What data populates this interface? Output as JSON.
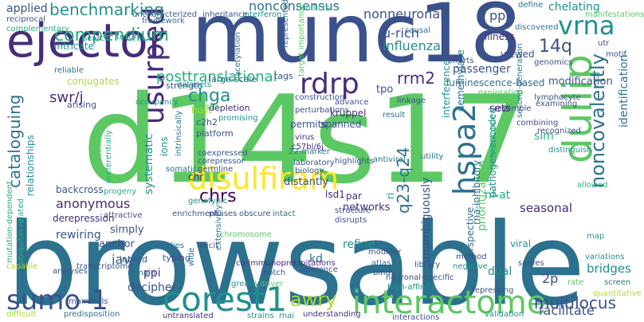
{
  "palette": [
    "#440154",
    "#472c7a",
    "#3b518b",
    "#2c718e",
    "#21908d",
    "#27ad81",
    "#5cc863",
    "#aadc32",
    "#fde725"
  ],
  "words": [
    {
      "text": "browsable",
      "c": 3
    },
    {
      "text": "d14s17",
      "c": 6
    },
    {
      "text": "munc18",
      "c": 2
    },
    {
      "text": "ejector",
      "c": 1
    },
    {
      "text": "interactome",
      "c": 6
    },
    {
      "text": "corest1",
      "c": 4
    },
    {
      "text": "sumo-1",
      "c": 2
    },
    {
      "text": "disulfiram",
      "c": 8
    },
    {
      "text": "dullip",
      "c": 6
    },
    {
      "text": "usurped",
      "c": 1
    },
    {
      "text": "vrna",
      "c": 4
    },
    {
      "text": "hspa2",
      "c": 3
    },
    {
      "text": "rdrp",
      "c": 1
    },
    {
      "text": "compendium",
      "c": 5
    },
    {
      "text": "benchmarking",
      "c": 4
    },
    {
      "text": "noncovalently",
      "c": 3
    },
    {
      "text": "cataloguing",
      "c": 3
    },
    {
      "text": "chga",
      "c": 4
    },
    {
      "text": "awry",
      "c": 7
    },
    {
      "text": "q23-q24",
      "c": 3
    },
    {
      "text": "chrs",
      "c": 0
    },
    {
      "text": "multilocus",
      "c": 2
    },
    {
      "text": "rrm2",
      "c": 1
    },
    {
      "text": "14q",
      "c": 2
    },
    {
      "text": "swr/j",
      "c": 1
    },
    {
      "text": "posttranslational",
      "c": 5
    },
    {
      "text": "nonneuronal",
      "c": 2
    },
    {
      "text": "nonconsensus",
      "c": 3
    },
    {
      "text": "chelating",
      "c": 4
    },
    {
      "text": "passenger",
      "c": 2
    },
    {
      "text": "anonymous",
      "c": 1
    },
    {
      "text": "identification",
      "c": 3
    },
    {
      "text": "unambiguously",
      "c": 2
    },
    {
      "text": "prioritization",
      "c": 6
    },
    {
      "text": "modification",
      "c": 2
    },
    {
      "text": "influenza",
      "c": 4
    },
    {
      "text": "u-rich",
      "c": 2
    },
    {
      "text": "ppis",
      "c": 2
    },
    {
      "text": "systematic",
      "c": 4
    },
    {
      "text": "seasonal",
      "c": 1
    },
    {
      "text": "facilitate",
      "c": 2
    },
    {
      "text": "bridges",
      "c": 4
    },
    {
      "text": "rewiring",
      "c": 2
    },
    {
      "text": "applied",
      "c": 2
    },
    {
      "text": "iav",
      "c": 3
    },
    {
      "text": "ppi",
      "c": 1
    },
    {
      "text": "decipher",
      "c": 2
    },
    {
      "text": "dual",
      "c": 4
    },
    {
      "text": "2p",
      "c": 2
    },
    {
      "text": "sets",
      "c": 1
    },
    {
      "text": "kd",
      "c": 3
    },
    {
      "text": "nf-at",
      "c": 5
    },
    {
      "text": "sim",
      "c": 5
    },
    {
      "text": "networks",
      "c": 1
    },
    {
      "text": "refine",
      "c": 4
    },
    {
      "text": "anchor",
      "c": 2
    },
    {
      "text": "simply",
      "c": 2
    },
    {
      "text": "distantly",
      "c": 2
    },
    {
      "text": "tpo",
      "c": 2
    },
    {
      "text": "conjugates",
      "c": 7
    },
    {
      "text": "spanned",
      "c": 2
    },
    {
      "text": "permits",
      "c": 2
    },
    {
      "text": "kruppel",
      "c": 1
    },
    {
      "text": "demethylase",
      "c": 3
    },
    {
      "text": "interference",
      "c": 4
    },
    {
      "text": "illness",
      "c": 1
    },
    {
      "text": "viewed",
      "c": 2
    },
    {
      "text": "luminescence-based",
      "c": 3
    },
    {
      "text": "derepression",
      "c": 1
    },
    {
      "text": "backcross",
      "c": 2
    },
    {
      "text": "relationships",
      "c": 4
    },
    {
      "text": "perspective",
      "c": 3
    },
    {
      "text": "viral",
      "c": 4
    },
    {
      "text": "pathogen-encoded",
      "c": 4
    },
    {
      "text": "rna-inhibitory",
      "c": 3
    },
    {
      "text": "intricate",
      "c": 4
    },
    {
      "text": "host",
      "c": 7
    },
    {
      "text": "ions",
      "c": 4
    },
    {
      "text": "chr",
      "c": 1
    },
    {
      "text": "lsd1",
      "c": 1
    },
    {
      "text": "par",
      "c": 1
    },
    {
      "text": "ri",
      "c": 4
    },
    {
      "text": "typing",
      "c": 2
    },
    {
      "text": "inbred",
      "c": 2
    },
    {
      "text": "depletion",
      "c": 1
    },
    {
      "text": "c2h2",
      "c": 2
    },
    {
      "text": "platform",
      "c": 2
    },
    {
      "text": "large-scale",
      "c": 3
    },
    {
      "text": "strength",
      "c": 2
    },
    {
      "text": "tags",
      "c": 2
    },
    {
      "text": "arising",
      "c": 2
    },
    {
      "text": "reliable",
      "c": 3
    },
    {
      "text": "framework",
      "c": 3
    },
    {
      "text": "datasets",
      "c": 4
    },
    {
      "text": "c57bl/6j",
      "c": 1
    },
    {
      "text": "virus",
      "c": 1
    },
    {
      "text": "perturbations",
      "c": 2
    },
    {
      "text": "construction",
      "c": 2
    },
    {
      "text": "22-marker",
      "c": 3
    },
    {
      "text": "laboratory",
      "c": 2
    },
    {
      "text": "biology",
      "c": 2
    },
    {
      "text": "highlights",
      "c": 2
    },
    {
      "text": "interactions",
      "c": 2
    },
    {
      "text": "high-affinity",
      "c": 4
    },
    {
      "text": "neuronal-specific",
      "c": 2
    },
    {
      "text": "repressing",
      "c": 2
    },
    {
      "text": "predisposition",
      "c": 3
    },
    {
      "text": "mammals",
      "c": 2
    },
    {
      "text": "untranslated",
      "c": 1
    },
    {
      "text": "understanding",
      "c": 1
    },
    {
      "text": "strains",
      "c": 4
    },
    {
      "text": "rnai",
      "c": 4
    },
    {
      "text": "validation",
      "c": 4
    },
    {
      "text": "difficult",
      "c": 7
    },
    {
      "text": "mutation-dependent",
      "c": 5
    },
    {
      "text": "ubiquitin-related",
      "c": 5
    },
    {
      "text": "analyses",
      "c": 2
    },
    {
      "text": "transcriptome",
      "c": 2
    },
    {
      "text": "remain",
      "c": 3
    },
    {
      "text": "co-immunoprecipitations",
      "c": 1
    },
    {
      "text": "library",
      "c": 2
    },
    {
      "text": "atlas",
      "c": 3
    },
    {
      "text": "binds",
      "c": 2
    },
    {
      "text": "reference",
      "c": 2
    },
    {
      "text": "method",
      "c": 2
    },
    {
      "text": "negative",
      "c": 4
    },
    {
      "text": "serves",
      "c": 2
    },
    {
      "text": "variations",
      "c": 4
    },
    {
      "text": "quantitative",
      "c": 7
    },
    {
      "text": "screen",
      "c": 3
    },
    {
      "text": "rate",
      "c": 6
    },
    {
      "text": "map",
      "c": 4
    },
    {
      "text": "allowed",
      "c": 5
    },
    {
      "text": "distinguish",
      "c": 4
    },
    {
      "text": "recognized",
      "c": 2
    },
    {
      "text": "combining",
      "c": 2
    },
    {
      "text": "resemble",
      "c": 2
    },
    {
      "text": "lymphocyte",
      "c": 2
    },
    {
      "text": "examining",
      "c": 2
    },
    {
      "text": "second-generation",
      "c": 3
    },
    {
      "text": "exploration",
      "c": 6
    },
    {
      "text": "genomics",
      "c": 2
    },
    {
      "text": "efforts",
      "c": 2
    },
    {
      "text": "motif",
      "c": 2
    },
    {
      "text": "utr",
      "c": 2
    },
    {
      "text": "manifestations",
      "c": 6
    },
    {
      "text": "discovered",
      "c": 3
    },
    {
      "text": "define",
      "c": 3
    },
    {
      "text": "causal",
      "c": 3
    },
    {
      "text": "conflicts",
      "c": 5
    },
    {
      "text": "target importance",
      "c": 6
    },
    {
      "text": "represented",
      "c": 3
    },
    {
      "text": "acetylation",
      "c": 3
    },
    {
      "text": "inheritance",
      "c": 2
    },
    {
      "text": "interferon",
      "c": 4
    },
    {
      "text": "uncharacterized",
      "c": 2
    },
    {
      "text": "testing",
      "c": 4
    },
    {
      "text": "reciprocal",
      "c": 2
    },
    {
      "text": "complementary",
      "c": 5
    },
    {
      "text": "occupancy",
      "c": 4
    },
    {
      "text": "testis",
      "c": 6
    },
    {
      "text": "promising",
      "c": 4
    },
    {
      "text": "coexpressed",
      "c": 2
    },
    {
      "text": "corepressor",
      "c": 2
    },
    {
      "text": "germline",
      "c": 2
    },
    {
      "text": "somatic",
      "c": 3
    },
    {
      "text": "intrinsically",
      "c": 3
    },
    {
      "text": "progeny",
      "c": 5
    },
    {
      "text": "preferentially",
      "c": 5
    },
    {
      "text": "success",
      "c": 6
    },
    {
      "text": "attractive",
      "c": 2
    },
    {
      "text": "enrichment",
      "c": 2
    },
    {
      "text": "phases",
      "c": 2
    },
    {
      "text": "obscure",
      "c": 2
    },
    {
      "text": "intact",
      "c": 3
    },
    {
      "text": "genotypic",
      "c": 4
    },
    {
      "text": "chromosome",
      "c": 6
    },
    {
      "text": "relies",
      "c": 3
    },
    {
      "text": "elicit",
      "c": 2
    },
    {
      "text": "extensively",
      "c": 3
    },
    {
      "text": "wide",
      "c": 3
    },
    {
      "text": "greatly",
      "c": 4
    },
    {
      "text": "driver",
      "c": 6
    },
    {
      "text": "notch",
      "c": 2
    },
    {
      "text": "structure",
      "c": 2
    },
    {
      "text": "disrupts",
      "c": 2
    },
    {
      "text": "modifier",
      "c": 2
    },
    {
      "text": "antiviral",
      "c": 3
    },
    {
      "text": "utility",
      "c": 3
    },
    {
      "text": "result",
      "c": 3
    },
    {
      "text": "linkage",
      "c": 2
    },
    {
      "text": "advance",
      "c": 2
    },
    {
      "text": "resistance",
      "c": 5
    },
    {
      "text": "search",
      "c": 4
    },
    {
      "text": "capable",
      "c": 7
    }
  ]
}
